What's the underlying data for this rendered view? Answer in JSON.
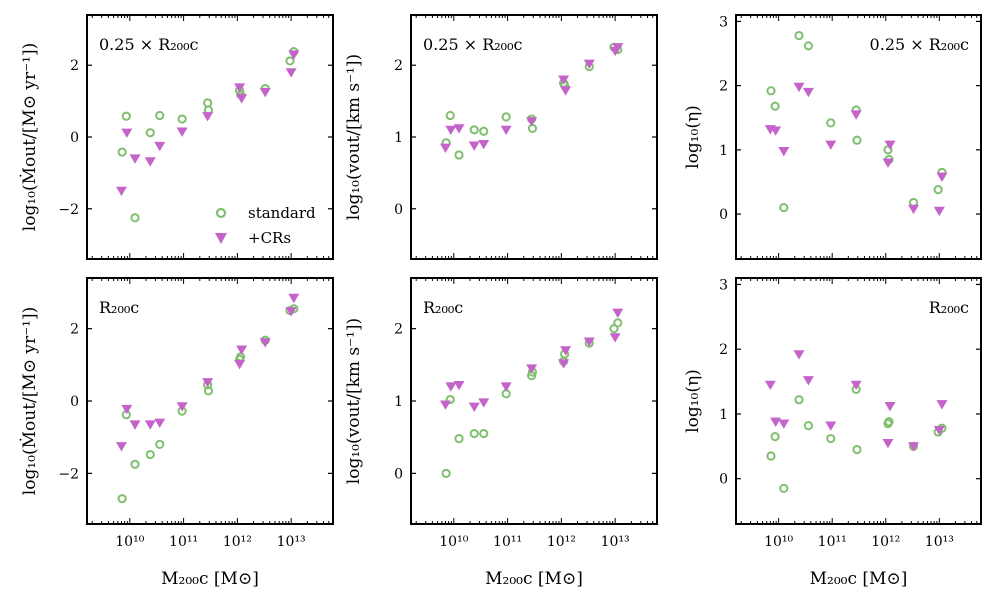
{
  "figure": {
    "x_label": "M₂₀₀c [M⊙]",
    "x_tick_labels": [
      "10¹⁰",
      "10¹¹",
      "10¹²",
      "10¹³"
    ],
    "legend": [
      {
        "label": "standard",
        "marker": "open-circle"
      },
      {
        "label": "+CRs",
        "marker": "down-triangle"
      }
    ],
    "colors": {
      "standard": "#7fbf6f",
      "crs": "#c463c9"
    }
  },
  "chart_data": [
    {
      "type": "scatter",
      "row": 0,
      "col": 0,
      "annotation": "0.25 × R₂₀₀c",
      "ylabel": "log₁₀(Ṁout/[M⊙ yr⁻¹])",
      "xscale": "log",
      "xlim": [
        1600000000.0,
        60000000000000.0
      ],
      "ylim": [
        -3.4,
        3.4
      ],
      "yticks": [
        -2,
        0,
        2
      ],
      "ytick_labels": [
        "−2",
        "0",
        "2"
      ],
      "legend_position": "lower-right",
      "series": [
        {
          "name": "standard",
          "x": [
            7200000000.0,
            12500000000.0,
            24000000000.0,
            36000000000.0,
            8600000000.0,
            94000000000.0,
            280000000000.0,
            290000000000.0,
            1100000000000.0,
            1150000000000.0,
            3300000000000.0,
            9500000000000.0,
            11200000000000.0
          ],
          "y": [
            -0.42,
            -2.25,
            0.12,
            0.6,
            0.58,
            0.5,
            0.95,
            0.75,
            1.3,
            1.18,
            1.35,
            2.12,
            2.38
          ]
        },
        {
          "name": "+CRs",
          "x": [
            7000000000.0,
            12500000000.0,
            24000000000.0,
            36000000000.0,
            8800000000.0,
            94000000000.0,
            280000000000.0,
            1100000000000.0,
            1200000000000.0,
            3300000000000.0,
            10000000000000.0,
            11200000000000.0
          ],
          "y": [
            -1.5,
            -0.6,
            -0.68,
            -0.25,
            0.12,
            0.15,
            0.58,
            1.38,
            1.08,
            1.25,
            1.8,
            2.3
          ]
        }
      ]
    },
    {
      "type": "scatter",
      "row": 0,
      "col": 1,
      "annotation": "0.25 × R₂₀₀c",
      "ylabel": "log₁₀(vout/[km s⁻¹])",
      "xscale": "log",
      "xlim": [
        1600000000.0,
        60000000000000.0
      ],
      "ylim": [
        -0.7,
        2.7
      ],
      "yticks": [
        0,
        1,
        2
      ],
      "ytick_labels": [
        "0",
        "1",
        "2"
      ],
      "series": [
        {
          "name": "standard",
          "x": [
            7200000000.0,
            12500000000.0,
            24000000000.0,
            36000000000.0,
            8600000000.0,
            94000000000.0,
            280000000000.0,
            290000000000.0,
            1100000000000.0,
            1150000000000.0,
            3300000000000.0,
            9500000000000.0,
            11200000000000.0
          ],
          "y": [
            0.92,
            0.75,
            1.1,
            1.08,
            1.3,
            1.28,
            1.25,
            1.12,
            1.75,
            1.72,
            1.98,
            2.25,
            2.22
          ]
        },
        {
          "name": "+CRs",
          "x": [
            7000000000.0,
            12500000000.0,
            24000000000.0,
            36000000000.0,
            8800000000.0,
            94000000000.0,
            280000000000.0,
            1100000000000.0,
            1200000000000.0,
            3300000000000.0,
            10000000000000.0,
            11200000000000.0
          ],
          "y": [
            0.85,
            1.12,
            0.88,
            0.9,
            1.1,
            1.1,
            1.22,
            1.8,
            1.65,
            2.02,
            2.2,
            2.25
          ]
        }
      ]
    },
    {
      "type": "scatter",
      "row": 0,
      "col": 2,
      "annotation": "0.25 × R₂₀₀c",
      "ylabel": "log₁₀(η)",
      "xscale": "log",
      "xlim": [
        1600000000.0,
        60000000000000.0
      ],
      "ylim": [
        -0.7,
        3.1
      ],
      "yticks": [
        0,
        1,
        2,
        3
      ],
      "ytick_labels": [
        "0",
        "1",
        "2",
        "3"
      ],
      "series": [
        {
          "name": "standard",
          "x": [
            7200000000.0,
            12500000000.0,
            24000000000.0,
            36000000000.0,
            8600000000.0,
            94000000000.0,
            280000000000.0,
            290000000000.0,
            1100000000000.0,
            1150000000000.0,
            3300000000000.0,
            9500000000000.0,
            11200000000000.0
          ],
          "y": [
            1.92,
            0.1,
            2.78,
            2.62,
            1.68,
            1.42,
            1.62,
            1.15,
            1.0,
            0.85,
            0.18,
            0.38,
            0.65
          ]
        },
        {
          "name": "+CRs",
          "x": [
            7000000000.0,
            12500000000.0,
            24000000000.0,
            36000000000.0,
            8800000000.0,
            94000000000.0,
            280000000000.0,
            1100000000000.0,
            1200000000000.0,
            3300000000000.0,
            10000000000000.0,
            11200000000000.0
          ],
          "y": [
            1.32,
            0.98,
            1.98,
            1.9,
            1.3,
            1.08,
            1.55,
            0.8,
            1.08,
            0.08,
            0.05,
            0.58
          ]
        }
      ]
    },
    {
      "type": "scatter",
      "row": 1,
      "col": 0,
      "annotation": "R₂₀₀c",
      "ylabel": "log₁₀(Ṁout/[M⊙ yr⁻¹])",
      "xscale": "log",
      "xlim": [
        1600000000.0,
        60000000000000.0
      ],
      "ylim": [
        -3.4,
        3.4
      ],
      "yticks": [
        -2,
        0,
        2
      ],
      "ytick_labels": [
        "−2",
        "0",
        "2"
      ],
      "series": [
        {
          "name": "standard",
          "x": [
            7200000000.0,
            12500000000.0,
            24000000000.0,
            36000000000.0,
            8600000000.0,
            94000000000.0,
            280000000000.0,
            290000000000.0,
            1100000000000.0,
            1150000000000.0,
            3300000000000.0,
            9500000000000.0,
            11200000000000.0
          ],
          "y": [
            -2.7,
            -1.75,
            -1.48,
            -1.2,
            -0.38,
            -0.28,
            0.45,
            0.28,
            1.15,
            1.22,
            1.68,
            2.5,
            2.55
          ]
        },
        {
          "name": "+CRs",
          "x": [
            7000000000.0,
            12500000000.0,
            24000000000.0,
            36000000000.0,
            8800000000.0,
            94000000000.0,
            280000000000.0,
            1100000000000.0,
            1200000000000.0,
            3300000000000.0,
            10000000000000.0,
            11200000000000.0
          ],
          "y": [
            -1.25,
            -0.65,
            -0.65,
            -0.6,
            -0.22,
            -0.15,
            0.52,
            1.02,
            1.42,
            1.62,
            2.48,
            2.85
          ]
        }
      ]
    },
    {
      "type": "scatter",
      "row": 1,
      "col": 1,
      "annotation": "R₂₀₀c",
      "ylabel": "log₁₀(vout/[km s⁻¹])",
      "xscale": "log",
      "xlim": [
        1600000000.0,
        60000000000000.0
      ],
      "ylim": [
        -0.7,
        2.7
      ],
      "yticks": [
        0,
        1,
        2
      ],
      "ytick_labels": [
        "0",
        "1",
        "2"
      ],
      "series": [
        {
          "name": "standard",
          "x": [
            7200000000.0,
            12500000000.0,
            24000000000.0,
            36000000000.0,
            8600000000.0,
            94000000000.0,
            280000000000.0,
            290000000000.0,
            1100000000000.0,
            1150000000000.0,
            3300000000000.0,
            9500000000000.0,
            11200000000000.0
          ],
          "y": [
            0.0,
            0.48,
            0.55,
            0.55,
            1.02,
            1.1,
            1.35,
            1.4,
            1.55,
            1.65,
            1.8,
            2.0,
            2.08
          ]
        },
        {
          "name": "+CRs",
          "x": [
            7000000000.0,
            12500000000.0,
            24000000000.0,
            36000000000.0,
            8800000000.0,
            94000000000.0,
            280000000000.0,
            1100000000000.0,
            1200000000000.0,
            3300000000000.0,
            10000000000000.0,
            11200000000000.0
          ],
          "y": [
            0.95,
            1.22,
            0.92,
            0.98,
            1.2,
            1.2,
            1.45,
            1.52,
            1.7,
            1.82,
            1.88,
            2.22
          ]
        }
      ]
    },
    {
      "type": "scatter",
      "row": 1,
      "col": 2,
      "annotation": "R₂₀₀c",
      "ylabel": "log₁₀(η)",
      "xscale": "log",
      "xlim": [
        1600000000.0,
        60000000000000.0
      ],
      "ylim": [
        -0.7,
        3.1
      ],
      "yticks": [
        0,
        1,
        2,
        3
      ],
      "ytick_labels": [
        "0",
        "1",
        "2",
        "3"
      ],
      "series": [
        {
          "name": "standard",
          "x": [
            7200000000.0,
            12500000000.0,
            24000000000.0,
            36000000000.0,
            8600000000.0,
            94000000000.0,
            280000000000.0,
            290000000000.0,
            1100000000000.0,
            1150000000000.0,
            3300000000000.0,
            9500000000000.0,
            11200000000000.0
          ],
          "y": [
            0.35,
            -0.15,
            1.22,
            0.82,
            0.65,
            0.62,
            1.38,
            0.45,
            0.85,
            0.88,
            0.5,
            0.72,
            0.78
          ]
        },
        {
          "name": "+CRs",
          "x": [
            7000000000.0,
            12500000000.0,
            24000000000.0,
            36000000000.0,
            8800000000.0,
            94000000000.0,
            280000000000.0,
            1100000000000.0,
            1200000000000.0,
            3300000000000.0,
            10000000000000.0,
            11200000000000.0
          ],
          "y": [
            1.45,
            0.85,
            1.92,
            1.52,
            0.88,
            0.82,
            1.45,
            0.55,
            1.12,
            0.5,
            0.75,
            1.15
          ]
        }
      ]
    }
  ]
}
